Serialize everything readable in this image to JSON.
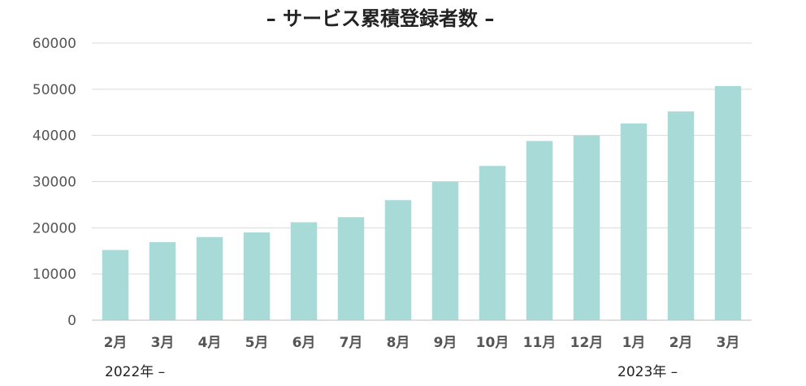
{
  "chart_data": {
    "type": "bar",
    "title": "– サービス累積登録者数 –",
    "categories": [
      "2月",
      "3月",
      "4月",
      "5月",
      "6月",
      "7月",
      "8月",
      "9月",
      "10月",
      "11月",
      "12月",
      "1月",
      "2月",
      "3月"
    ],
    "values": [
      15200,
      16900,
      18000,
      19000,
      21200,
      22300,
      26000,
      30000,
      33400,
      38800,
      40000,
      42600,
      45200,
      50700
    ],
    "yticks": [
      "0",
      "10000",
      "20000",
      "30000",
      "40000",
      "50000",
      "60000"
    ],
    "ylim": [
      0,
      60000
    ],
    "xlabel": "",
    "ylabel": "",
    "grid": true,
    "bar_color": "#a8dbd8",
    "group_labels": [
      "2022年 –",
      "2023年 –"
    ]
  }
}
